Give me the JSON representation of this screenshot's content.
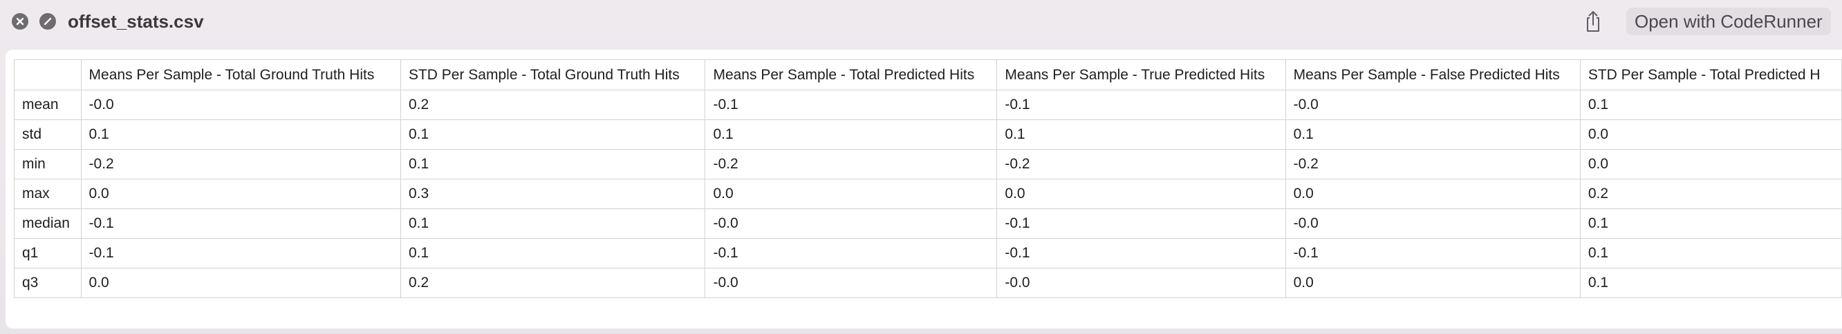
{
  "window": {
    "title": "offset_stats.csv",
    "open_button_label": "Open with CodeRunner"
  },
  "table": {
    "columns": [
      "",
      "Means Per Sample - Total Ground Truth Hits",
      "STD Per Sample - Total Ground Truth Hits",
      "Means Per Sample - Total Predicted Hits",
      "Means Per Sample - True Predicted Hits",
      "Means Per Sample - False Predicted Hits",
      "STD Per Sample - Total Predicted H"
    ],
    "rows": [
      [
        "mean",
        "-0.0",
        "0.2",
        "-0.1",
        "-0.1",
        "-0.0",
        "0.1"
      ],
      [
        "std",
        "0.1",
        "0.1",
        "0.1",
        "0.1",
        "0.1",
        "0.0"
      ],
      [
        "min",
        "-0.2",
        "0.1",
        "-0.2",
        "-0.2",
        "-0.2",
        "0.0"
      ],
      [
        "max",
        "0.0",
        "0.3",
        "0.0",
        "0.0",
        "0.0",
        "0.2"
      ],
      [
        "median",
        "-0.1",
        "0.1",
        "-0.0",
        "-0.1",
        "-0.0",
        "0.1"
      ],
      [
        "q1",
        "-0.1",
        "0.1",
        "-0.1",
        "-0.1",
        "-0.1",
        "0.1"
      ],
      [
        "q3",
        "0.0",
        "0.2",
        "-0.0",
        "-0.0",
        "0.0",
        "0.1"
      ]
    ]
  },
  "icons": {
    "close": "close-icon",
    "block": "block-icon",
    "share": "share-icon"
  },
  "colors": {
    "window_background": "#ece8ec",
    "cell_border": "#d2d2d2",
    "button_background": "#e2dee3"
  }
}
